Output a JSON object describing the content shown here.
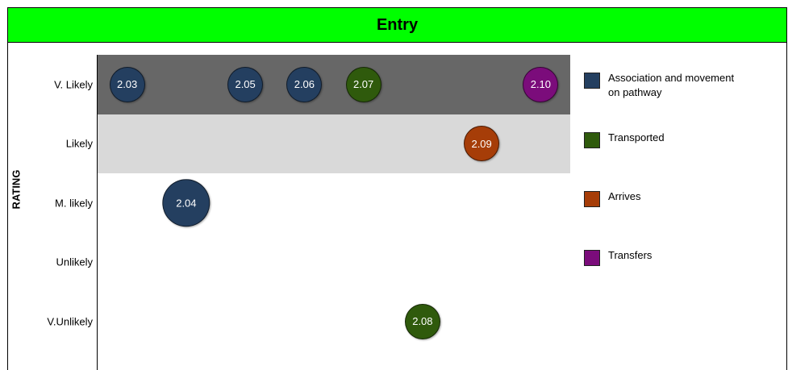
{
  "title": "Entry",
  "colors": {
    "header_bg": "#00ff00",
    "band_vlikely": "#676767",
    "band_likely": "#d9d9d9"
  },
  "chart_data": {
    "type": "scatter",
    "title": "Entry",
    "ylabel": "RATING",
    "xlabel": "",
    "y_categories": [
      "V. Likely",
      "Likely",
      "M. likely",
      "Unlikely",
      "V.Unlikely"
    ],
    "series": [
      {
        "name": "Association and movement on pathway",
        "color": "#243f60"
      },
      {
        "name": "Transported",
        "color": "#2f5a0c"
      },
      {
        "name": "Arrives",
        "color": "#a63d08"
      },
      {
        "name": "Transfers",
        "color": "#7b0c7b"
      }
    ],
    "points": [
      {
        "label": "2.03",
        "rating": "V. Likely",
        "series": "Association and movement on pathway",
        "x": 1,
        "size": 1
      },
      {
        "label": "2.05",
        "rating": "V. Likely",
        "series": "Association and movement on pathway",
        "x": 5,
        "size": 1
      },
      {
        "label": "2.06",
        "rating": "V. Likely",
        "series": "Association and movement on pathway",
        "x": 7,
        "size": 1
      },
      {
        "label": "2.07",
        "rating": "V. Likely",
        "series": "Transported",
        "x": 9,
        "size": 1
      },
      {
        "label": "2.10",
        "rating": "V. Likely",
        "series": "Transfers",
        "x": 15,
        "size": 1
      },
      {
        "label": "2.09",
        "rating": "Likely",
        "series": "Arrives",
        "x": 13,
        "size": 1
      },
      {
        "label": "2.04",
        "rating": "M. likely",
        "series": "Association and movement on pathway",
        "x": 3,
        "size": 1.35
      },
      {
        "label": "2.08",
        "rating": "V.Unlikely",
        "series": "Transported",
        "x": 11,
        "size": 1
      }
    ],
    "highlight_bands": [
      "V. Likely",
      "Likely"
    ],
    "legend_position": "right",
    "grid": false
  }
}
